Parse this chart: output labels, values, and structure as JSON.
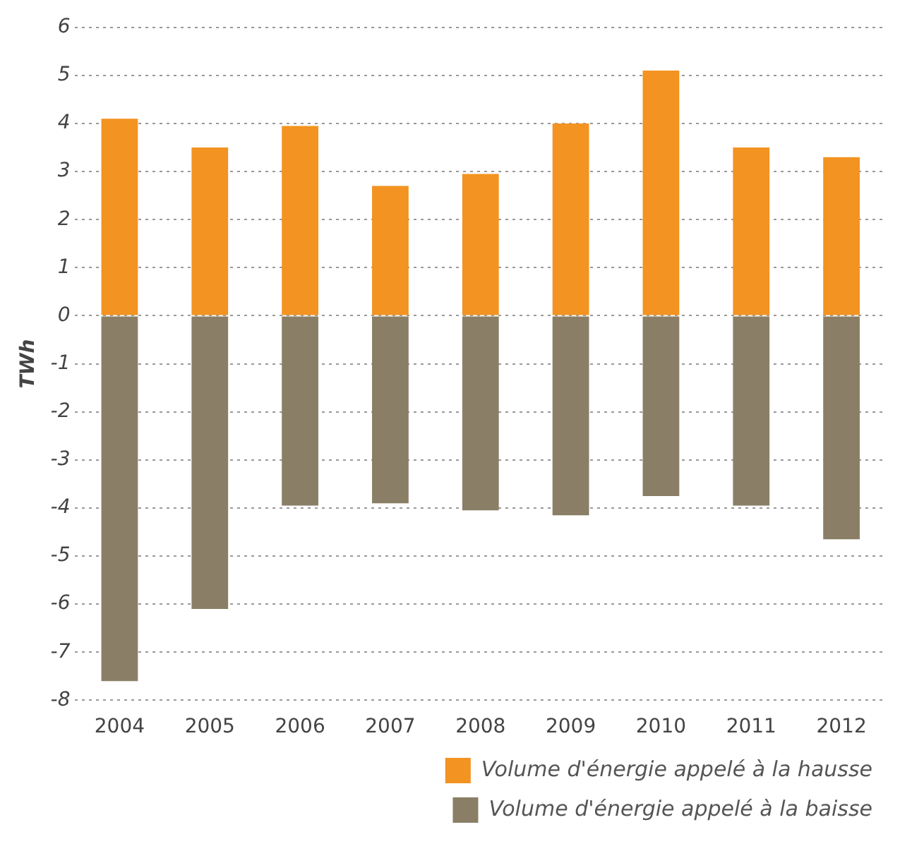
{
  "chart_data": {
    "type": "bar",
    "stacked": true,
    "categories": [
      "2004",
      "2005",
      "2006",
      "2007",
      "2008",
      "2009",
      "2010",
      "2011",
      "2012"
    ],
    "series": [
      {
        "name": "Volume d'énergie appelé à la hausse",
        "color": "#f39321",
        "values": [
          4.1,
          3.5,
          3.95,
          2.7,
          2.95,
          4.0,
          5.1,
          3.5,
          3.3
        ]
      },
      {
        "name": "Volume d'énergie appelé à la baisse",
        "color": "#8a7f66",
        "values": [
          -7.6,
          -6.1,
          -3.95,
          -3.9,
          -4.05,
          -4.15,
          -3.75,
          -3.95,
          -4.65
        ]
      }
    ],
    "ylim": [
      -8,
      6
    ],
    "yticks": [
      -8,
      -7,
      -6,
      -5,
      -4,
      -3,
      -2,
      -1,
      0,
      1,
      2,
      3,
      4,
      5,
      6
    ],
    "ylabel": "TWh",
    "grid": "y",
    "legend": "bottom right"
  }
}
